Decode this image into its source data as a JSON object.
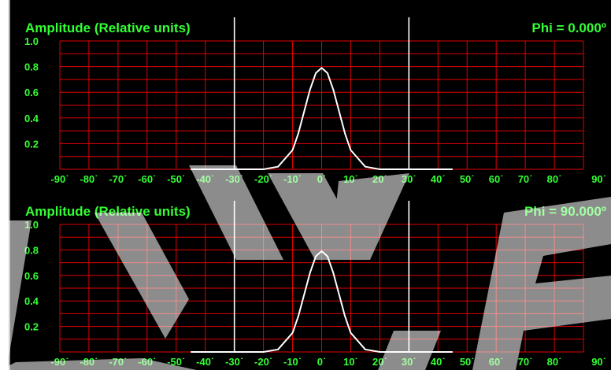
{
  "colors": {
    "background": "#000000",
    "grid": "#e00000",
    "text": "#33ff33",
    "trace": "#ffffff",
    "marker": "#ffffff",
    "watermark": "#ffffff"
  },
  "watermark_text": "W K F",
  "chart_data": [
    {
      "type": "line",
      "title": "Amplitude (Relative units)",
      "annotation": "Phi = 0.000º",
      "x_ticks": [
        "-90˙",
        "-80˙",
        "-70˙",
        "-60˙",
        "-50˙",
        "-40˙",
        "-30˙",
        "-20˙",
        "-10˙",
        "0˙",
        "10˙",
        "20˙",
        "30˙",
        "40˙",
        "50˙",
        "60˙",
        "70˙",
        "80˙",
        "90˙"
      ],
      "y_ticks": [
        "1.0",
        "0.8",
        "0.6",
        "0.4",
        "0.2"
      ],
      "xlim": [
        -90,
        90
      ],
      "ylim": [
        0,
        1.0
      ],
      "grid": true,
      "markers_x": [
        -30,
        30
      ],
      "series": [
        {
          "x": [
            -45,
            -20,
            -15,
            -10,
            -8,
            -6,
            -4,
            -2,
            0,
            2,
            4,
            6,
            8,
            10,
            15,
            20,
            45
          ],
          "y": [
            0.0,
            0.0,
            0.02,
            0.15,
            0.28,
            0.45,
            0.62,
            0.75,
            0.79,
            0.75,
            0.62,
            0.45,
            0.28,
            0.15,
            0.02,
            0.0,
            0.0
          ]
        }
      ]
    },
    {
      "type": "line",
      "title": "Amplitude (Relative units)",
      "annotation": "Phi = 90.000º",
      "x_ticks": [
        "-90˙",
        "-80˙",
        "-70˙",
        "-60˙",
        "-50˙",
        "-40˙",
        "-30˙",
        "-20˙",
        "-10˙",
        "0˙",
        "10˙",
        "20˙",
        "30˙",
        "40˙",
        "50˙",
        "60˙",
        "70˙",
        "80˙",
        "90˙"
      ],
      "y_ticks": [
        "1.0",
        "0.8",
        "0.6",
        "0.4",
        "0.2"
      ],
      "xlim": [
        -90,
        90
      ],
      "ylim": [
        0,
        1.0
      ],
      "grid": true,
      "markers_x": [
        -30,
        30
      ],
      "series": [
        {
          "x": [
            -45,
            -20,
            -15,
            -10,
            -8,
            -6,
            -4,
            -2,
            0,
            2,
            4,
            6,
            8,
            10,
            15,
            20,
            45
          ],
          "y": [
            0.0,
            0.0,
            0.02,
            0.15,
            0.28,
            0.45,
            0.62,
            0.75,
            0.79,
            0.75,
            0.62,
            0.45,
            0.28,
            0.15,
            0.02,
            0.0,
            0.0
          ]
        }
      ]
    }
  ]
}
